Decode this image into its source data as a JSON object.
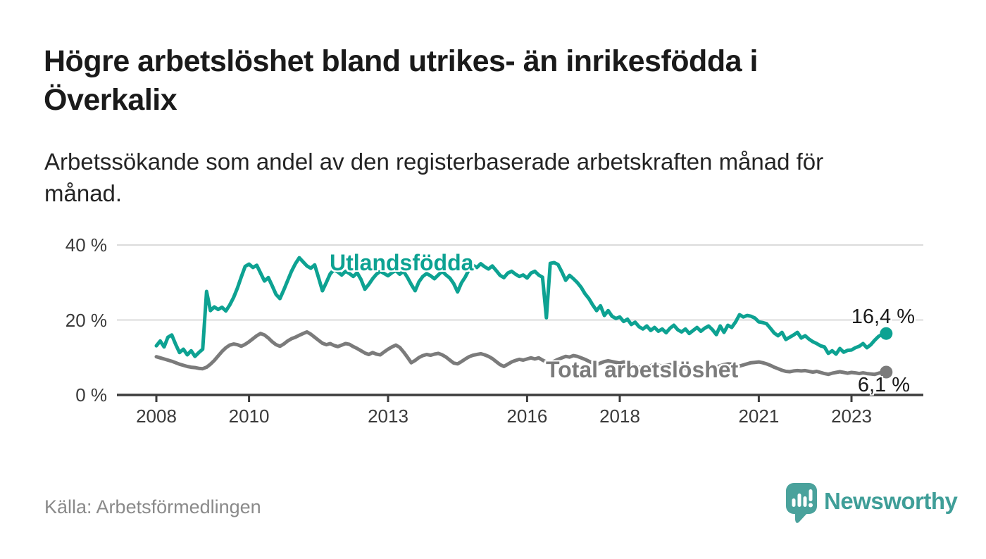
{
  "title": "Högre arbetslöshet bland utrikes- än inrikesfödda i\nÖverkalix",
  "subtitle": "Arbetssökande som andel av den registerbaserade arbetskraften månad för\nmånad.",
  "source": {
    "text": "Källa: Arbetsförmedlingen"
  },
  "branding": {
    "name": "Newsworthy",
    "logo_icon": "speech-bubble-bar-chart-icon",
    "color": "#3f9e98"
  },
  "colors": {
    "foreign_born_line": "#0da292",
    "total_line": "#7b7b7b",
    "axis": "#3d3d3d",
    "grid": "#dbdbdb",
    "tick_text": "#3a3a3a",
    "end_label_text": "#1a1a1a",
    "source_text": "#8a8a8a"
  },
  "chart_data": {
    "type": "line",
    "title": "Högre arbetslöshet bland utrikes- än inrikesfödda i Överkalix",
    "subtitle": "Arbetssökande som andel av den registerbaserade arbetskraften månad för månad.",
    "xlabel": "",
    "ylabel": "",
    "grid": "horizontal",
    "legend_position": "inline-labels",
    "x_unit": "month",
    "x_range": [
      "2008-01",
      "2023-10"
    ],
    "x_start_year": 2008,
    "ylim": [
      0,
      43
    ],
    "y_ticks": [
      {
        "value": 0,
        "label": "0 %"
      },
      {
        "value": 20,
        "label": "20 %"
      },
      {
        "value": 40,
        "label": "40 %"
      }
    ],
    "x_ticks": [
      {
        "value": 2008,
        "label": "2008"
      },
      {
        "value": 2010,
        "label": "2010"
      },
      {
        "value": 2013,
        "label": "2013"
      },
      {
        "value": 2016,
        "label": "2016"
      },
      {
        "value": 2018,
        "label": "2018"
      },
      {
        "value": 2021,
        "label": "2021"
      },
      {
        "value": 2023,
        "label": "2023"
      }
    ],
    "series": [
      {
        "name": "Utlandsfödda",
        "color": "#0da292",
        "end_label": "16,4 %",
        "end_value": 16.4,
        "values": [
          13.1,
          14.4,
          12.8,
          15.4,
          16.0,
          13.5,
          11.3,
          12.2,
          10.7,
          11.8,
          10.3,
          11.3,
          12.2,
          27.6,
          22.5,
          23.5,
          22.8,
          23.4,
          22.4,
          24.0,
          26.0,
          28.5,
          31.5,
          34.3,
          34.9,
          34.0,
          34.6,
          32.5,
          30.4,
          31.3,
          29.1,
          26.8,
          25.7,
          28.0,
          30.5,
          33.0,
          35.0,
          36.6,
          35.5,
          34.4,
          33.8,
          34.7,
          31.3,
          27.8,
          30.0,
          32.3,
          33.4,
          32.8,
          32.0,
          33.0,
          32.4,
          31.6,
          32.6,
          30.8,
          28.2,
          29.5,
          31.0,
          32.2,
          33.0,
          32.4,
          31.8,
          32.6,
          33.2,
          32.2,
          33.0,
          31.4,
          29.5,
          27.8,
          30.2,
          31.6,
          32.4,
          31.8,
          31.0,
          32.0,
          33.0,
          32.0,
          31.2,
          29.7,
          27.5,
          29.9,
          31.5,
          33.5,
          34.6,
          34.0,
          35.0,
          34.2,
          33.6,
          34.4,
          33.2,
          31.9,
          31.3,
          32.5,
          33.0,
          32.2,
          31.6,
          32.0,
          31.2,
          32.5,
          33.0,
          32.0,
          31.4,
          20.6,
          35.1,
          35.3,
          34.8,
          32.8,
          30.6,
          31.9,
          31.0,
          30.0,
          28.7,
          27.0,
          25.7,
          24.0,
          22.5,
          23.8,
          21.2,
          22.5,
          21.0,
          20.4,
          20.8,
          19.6,
          20.2,
          18.8,
          19.4,
          18.2,
          17.6,
          18.4,
          17.2,
          18.0,
          17.0,
          17.6,
          16.6,
          17.8,
          18.6,
          17.4,
          16.8,
          17.6,
          16.4,
          17.2,
          18.0,
          17.0,
          17.8,
          18.4,
          17.4,
          16.1,
          18.4,
          16.7,
          18.6,
          18.0,
          19.5,
          21.4,
          20.8,
          21.2,
          21.0,
          20.5,
          19.5,
          19.3,
          19.0,
          17.8,
          16.5,
          15.8,
          16.7,
          14.8,
          15.4,
          16.0,
          16.7,
          15.2,
          15.8,
          14.9,
          14.2,
          13.7,
          13.1,
          12.8,
          11.1,
          11.8,
          10.9,
          12.4,
          11.4,
          11.9,
          12.0,
          12.6,
          13.0,
          13.7,
          12.6,
          13.4,
          14.6,
          15.6,
          16.2,
          16.4
        ]
      },
      {
        "name": "Total arbetslöshet",
        "color": "#7b7b7b",
        "end_label": "6,1 %",
        "end_value": 6.1,
        "values": [
          10.2,
          9.9,
          9.6,
          9.3,
          9.0,
          8.6,
          8.2,
          7.9,
          7.6,
          7.4,
          7.3,
          7.1,
          7.0,
          7.4,
          8.2,
          9.2,
          10.4,
          11.6,
          12.6,
          13.3,
          13.6,
          13.4,
          13.0,
          13.5,
          14.2,
          15.0,
          15.8,
          16.4,
          16.0,
          15.2,
          14.2,
          13.4,
          13.0,
          13.6,
          14.4,
          15.0,
          15.4,
          15.9,
          16.4,
          16.8,
          16.2,
          15.4,
          14.6,
          13.8,
          13.4,
          13.7,
          13.2,
          12.9,
          13.3,
          13.7,
          13.5,
          12.9,
          12.4,
          11.8,
          11.2,
          10.8,
          11.3,
          10.9,
          10.7,
          11.5,
          12.2,
          12.8,
          13.3,
          12.7,
          11.5,
          10.1,
          8.6,
          9.2,
          10.0,
          10.5,
          10.8,
          10.6,
          10.9,
          11.1,
          10.7,
          10.1,
          9.3,
          8.5,
          8.3,
          8.9,
          9.6,
          10.2,
          10.6,
          10.8,
          11.0,
          10.7,
          10.3,
          9.7,
          8.9,
          8.1,
          7.6,
          8.2,
          8.8,
          9.2,
          9.5,
          9.3,
          9.6,
          9.9,
          9.6,
          9.9,
          9.3,
          8.8,
          8.6,
          9.0,
          9.5,
          9.9,
          10.3,
          10.1,
          10.5,
          10.3,
          9.9,
          9.5,
          9.0,
          8.5,
          8.1,
          8.5,
          8.9,
          9.1,
          8.9,
          8.7,
          8.5,
          8.8,
          8.4,
          8.0,
          7.7,
          7.4,
          7.2,
          7.5,
          7.8,
          8.1,
          7.9,
          7.7,
          7.9,
          8.1,
          7.8,
          7.5,
          7.2,
          7.0,
          6.8,
          7.1,
          7.5,
          7.7,
          7.5,
          7.3,
          7.6,
          7.5,
          7.8,
          8.1,
          8.3,
          8.2,
          7.9,
          7.7,
          8.0,
          8.3,
          8.6,
          8.7,
          8.8,
          8.6,
          8.3,
          7.9,
          7.4,
          7.0,
          6.6,
          6.3,
          6.2,
          6.4,
          6.5,
          6.4,
          6.5,
          6.3,
          6.1,
          6.3,
          6.0,
          5.7,
          5.5,
          5.8,
          6.0,
          6.2,
          6.0,
          5.8,
          6.0,
          5.9,
          5.7,
          5.9,
          5.7,
          5.6,
          5.5,
          5.8,
          6.0,
          6.1
        ]
      }
    ]
  }
}
